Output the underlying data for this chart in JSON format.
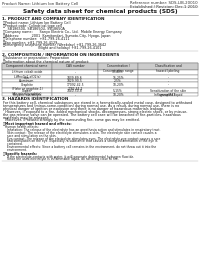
{
  "title": "Safety data sheet for chemical products (SDS)",
  "header_left": "Product Name: Lithium Ion Battery Cell",
  "header_right_line1": "Reference number: SDS-LIB-20010",
  "header_right_line2": "Established / Revision: Dec.1 2010",
  "section1_title": "1. PRODUCT AND COMPANY IDENTIFICATION",
  "section1_lines": [
    "・Product name: Lithium Ion Battery Cell",
    "・Product code: Cylindrical-type cell",
    "    SB18650U, SB18650U, SB18650A",
    "・Company name:      Sanyo Electric Co., Ltd.  Mobile Energy Company",
    "・Address:           2001  Kamitondari, Sumoto-City, Hyogo, Japan",
    "・Telephone number:  +81-799-26-4111",
    "・Fax number: +81-799-26-4129",
    "・Emergency telephone number (Weekday) +81-799-26-3642",
    "                               (Night and holiday) +81-799-26-4101"
  ],
  "section2_title": "2. COMPOSITION / INFORMATION ON INGREDIENTS",
  "section2_lines": [
    "・Substance or preparation: Preparation",
    "・Information about the chemical nature of product:"
  ],
  "table_col_labels": [
    "Component chemical name",
    "CAS number",
    "Concentration /\nConcentration range",
    "Classification and\nhazard labeling"
  ],
  "table_sub_header": [
    "Substance name",
    "",
    "30-40%",
    ""
  ],
  "table_rows": [
    [
      "Lithium cobalt oxide\n(LiMnxCo1-x(O2)x)",
      "-",
      "30-40%",
      "-"
    ],
    [
      "Iron",
      "7439-89-6",
      "15-25%",
      "-"
    ],
    [
      "Aluminum",
      "7429-90-5",
      "2-5%",
      "-"
    ],
    [
      "Graphite\n(Flake or graphite-1)\n(Air micro graphite)",
      "17092-42-5\n7782-44-2",
      "10-20%",
      "-"
    ],
    [
      "Copper",
      "7440-50-8",
      "5-15%",
      "Sensitization of the skin\ngroup R43"
    ],
    [
      "Organic electrolyte",
      "-",
      "10-20%",
      "Inflammable liquid"
    ]
  ],
  "section3_title": "3. HAZARDS IDENTIFICATION",
  "section3_lines": [
    "For this battery cell, chemical substances are stored in a hermetically-sealed metal case, designed to withstand",
    "temperatures and (minus-some-condition) during normal use. As a result, during normal use, there is no",
    "physical danger of ignition or explosion and there is no danger of hazardous materials leakage.",
    "  However, if exposed to a fire, added mechanical shocks, decompresses, strong electric shock, or by misuse,",
    "the gas release valve can be operated. The battery cell case will be breached of fire-particles, hazardous",
    "materials may be released.",
    "  Moreover, if heated strongly by the surrounding fire, some gas may be emitted."
  ],
  "hazard_title": "・Most important hazard and effects:",
  "hazard_lines": [
    "Human health effects:",
    "  Inhalation: The release of the electrolyte has an anesthesia action and stimulates in respiratory tract.",
    "  Skin contact: The release of the electrolyte stimulates a skin. The electrolyte skin contact causes a",
    "  sore and stimulation on the skin.",
    "  Eye contact: The release of the electrolyte stimulates eyes. The electrolyte eye contact causes a sore",
    "  and stimulation on the eye. Especially, a substance that causes a strong inflammation of the eye is",
    "  contained.",
    "  Environmental effects: Since a battery cell remains in the environment, do not throw out it into the",
    "  environment."
  ],
  "specific_title": "・Specific hazards:",
  "specific_lines": [
    "  If the electrolyte contacts with water, it will generate detrimental hydrogen fluoride.",
    "  Since the used electrolyte is inflammable liquid, do not bring close to fire."
  ],
  "bg_color": "#ffffff",
  "text_color": "#1a1a1a",
  "header_bg": "#e8e8e8",
  "line_color": "#555555",
  "table_header_bg": "#cccccc"
}
